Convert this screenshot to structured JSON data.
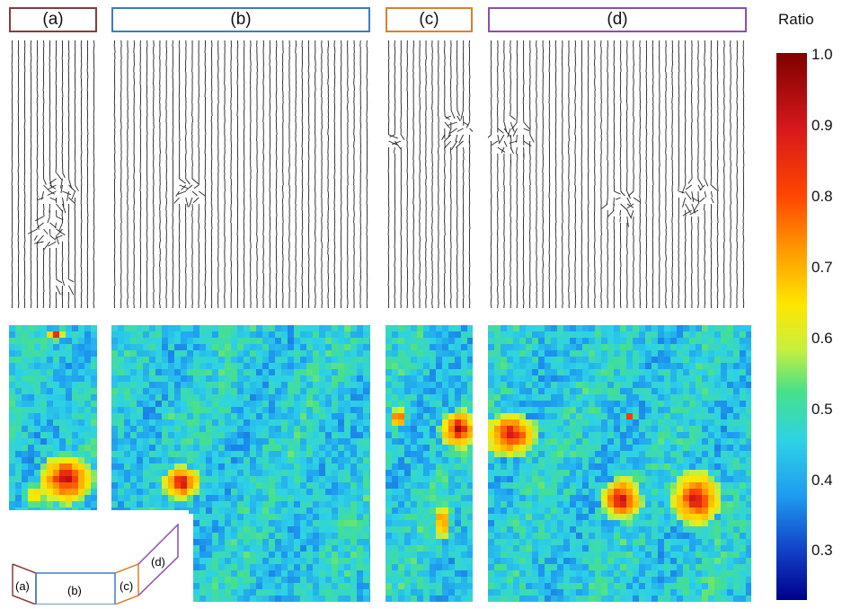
{
  "panels": [
    {
      "id": "a",
      "label": "(a)",
      "color": "#8b3a3a"
    },
    {
      "id": "b",
      "label": "(b)",
      "color": "#3a7ec0"
    },
    {
      "id": "c",
      "label": "(c)",
      "color": "#d9822b"
    },
    {
      "id": "d",
      "label": "(d)",
      "color": "#8a4fb0"
    }
  ],
  "colorbar": {
    "title": "Ratio",
    "ticks": [
      "1.0",
      "0.9",
      "0.8",
      "0.7",
      "0.6",
      "0.5",
      "0.4",
      "0.3"
    ],
    "min": 0.23,
    "max": 1.0
  },
  "inset": {
    "labels": [
      "(a)",
      "(b)",
      "(c)",
      "(d)"
    ]
  }
}
